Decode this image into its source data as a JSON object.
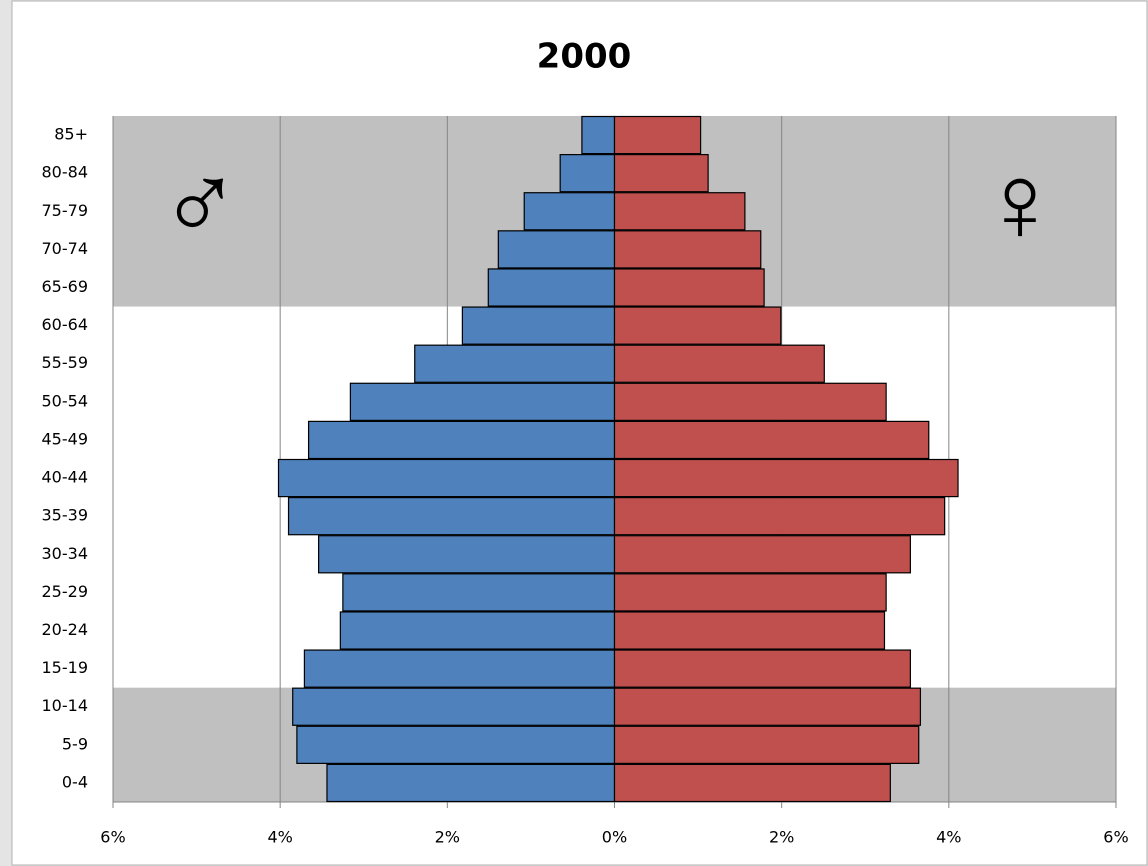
{
  "chart_data": {
    "type": "pyramid",
    "title": "2000",
    "categories": [
      "0-4",
      "5-9",
      "10-14",
      "15-19",
      "20-24",
      "25-29",
      "30-34",
      "35-39",
      "40-44",
      "45-49",
      "50-54",
      "55-59",
      "60-64",
      "65-69",
      "70-74",
      "75-79",
      "80-84",
      "85+"
    ],
    "series": [
      {
        "name": "♂",
        "color": "#4f81bd",
        "values": [
          -3.44,
          -3.8,
          -3.85,
          -3.71,
          -3.28,
          -3.25,
          -3.54,
          -3.9,
          -4.02,
          -3.66,
          -3.16,
          -2.39,
          -1.82,
          -1.51,
          -1.39,
          -1.08,
          -0.65,
          -0.39
        ]
      },
      {
        "name": "♀",
        "color": "#c0504d",
        "values": [
          3.3,
          3.64,
          3.66,
          3.54,
          3.23,
          3.25,
          3.54,
          3.95,
          4.11,
          3.76,
          3.25,
          2.51,
          1.99,
          1.79,
          1.75,
          1.56,
          1.12,
          1.03
        ]
      }
    ],
    "xlim": [
      -6,
      6
    ],
    "xticks": [
      {
        "value": -6,
        "label": "6%"
      },
      {
        "value": -4,
        "label": "4%"
      },
      {
        "value": -2,
        "label": "2%"
      },
      {
        "value": 0,
        "label": "0%"
      },
      {
        "value": 2,
        "label": "2%"
      },
      {
        "value": 4,
        "label": "4%"
      },
      {
        "value": 6,
        "label": "6%"
      }
    ],
    "grid": true
  }
}
